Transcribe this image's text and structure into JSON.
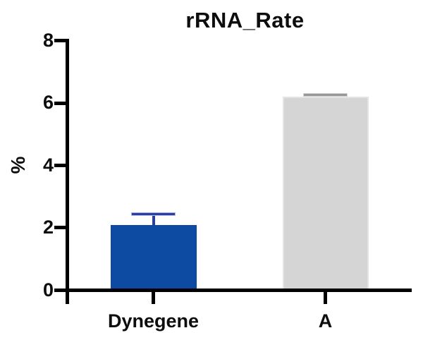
{
  "chart_data": {
    "type": "bar",
    "title": "rRNA_Rate",
    "ylabel": "%",
    "xlabel": "",
    "categories": [
      "Dynegene",
      "A"
    ],
    "values": [
      2.1,
      6.2
    ],
    "errors_plus": [
      0.35,
      0.07
    ],
    "ylim": [
      0,
      8
    ],
    "yticks": [
      0,
      2,
      4,
      6,
      8
    ],
    "grid": false,
    "legend": "none",
    "bar_colors": [
      "#0c4ba1",
      "#d5d5d5"
    ],
    "bar_borders": [
      null,
      "#e4e4e4"
    ],
    "error_colors": [
      "#2c3f9c",
      "#979797"
    ],
    "error_halo_colors": [
      "#aab7e8",
      "#d4d4d4"
    ],
    "axis_color": "#000000",
    "text_color": "#0d0d0d",
    "background_color": "#ffffff"
  }
}
